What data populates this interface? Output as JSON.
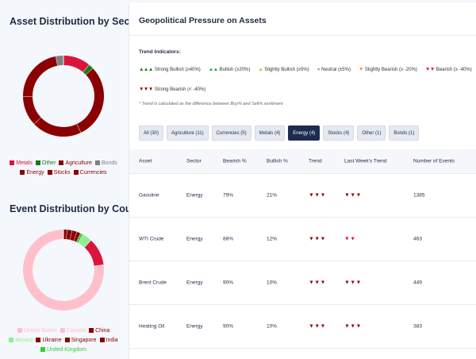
{
  "asset_distribution": {
    "title": "Asset Distribution by Sector",
    "legend": [
      {
        "label": "Metals",
        "color": "#dc143c"
      },
      {
        "label": "Other",
        "color": "#1a7a1a"
      },
      {
        "label": "Agriculture",
        "color": "#8b0000"
      },
      {
        "label": "Bonds",
        "color": "#808080"
      },
      {
        "label": "Energy",
        "color": "#8b0000"
      },
      {
        "label": "Stocks",
        "color": "#8b0000"
      },
      {
        "label": "Currencies",
        "color": "#8b0000"
      }
    ],
    "chart_data": {
      "type": "pie",
      "variant": "donut",
      "slices": [
        {
          "name": "Metals",
          "value": 11,
          "color": "#dc143c"
        },
        {
          "name": "Other",
          "value": 2,
          "color": "#1a7a1a"
        },
        {
          "name": "Agriculture",
          "value": 30,
          "color": "#8b0000"
        },
        {
          "name": "Stocks",
          "value": 20,
          "color": "#8b0000"
        },
        {
          "name": "Currencies",
          "value": 12,
          "color": "#8b0000"
        },
        {
          "name": "Energy",
          "value": 22,
          "color": "#8b0000"
        },
        {
          "name": "Bonds",
          "value": 3,
          "color": "#808080"
        }
      ]
    }
  },
  "event_distribution": {
    "title": "Event Distribution by Country",
    "legend": [
      {
        "label": "United States",
        "color": "#ffc0cb"
      },
      {
        "label": "Canada",
        "color": "#ffc0cb"
      },
      {
        "label": "China",
        "color": "#8b0000"
      },
      {
        "label": "Mexico",
        "color": "#90ee90"
      },
      {
        "label": "Ukraine",
        "color": "#8b0000"
      },
      {
        "label": "Singapore",
        "color": "#8b0000"
      },
      {
        "label": "India",
        "color": "#8b0000"
      },
      {
        "label": "United Kingdom",
        "color": "#32cd32"
      }
    ],
    "chart_data": {
      "type": "pie",
      "variant": "donut",
      "slices": [
        {
          "name": "China",
          "value": 1.5,
          "color": "#8b0000"
        },
        {
          "name": "Ukraine",
          "value": 2,
          "color": "#8b0000"
        },
        {
          "name": "Singapore",
          "value": 2,
          "color": "#8b0000"
        },
        {
          "name": "India",
          "value": 1.5,
          "color": "#8b0000"
        },
        {
          "name": "United Kingdom",
          "value": 1,
          "color": "#32cd32"
        },
        {
          "name": "Mexico",
          "value": 4,
          "color": "#90ee90"
        },
        {
          "name": "Canada",
          "value": 11,
          "color": "#dc143c"
        },
        {
          "name": "United States",
          "value": 77,
          "color": "#ffc0cb"
        }
      ]
    }
  },
  "panel": {
    "title": "Geopolitical Pressure on Assets",
    "trend_title": "Trend Indicators:",
    "indicators": [
      {
        "symbol": "▲▲▲",
        "color": "#1a7a1a",
        "label": "Strong Bullish (≥40%)"
      },
      {
        "symbol": "▲▲",
        "color": "#32a852",
        "label": "Bullish (≥20%)"
      },
      {
        "symbol": "▲",
        "color": "#9acd32",
        "label": "Slightly Bullish (≥5%)"
      },
      {
        "symbol": "●",
        "color": "#9aa3ad",
        "label": "Neutral (±5%)"
      },
      {
        "symbol": "▼",
        "color": "#f28c28",
        "label": "Slightly Bearish (≥ -20%)"
      },
      {
        "symbol": "▼▼",
        "color": "#dc143c",
        "label": "Bearish (≥ -40%)"
      },
      {
        "symbol": "▼▼▼",
        "color": "#8b0d0d",
        "label": "Strong Bearish (< -40%)"
      }
    ],
    "note": "* Trend is calculated as the difference between Buy% and Sell% sentiment",
    "filters": [
      {
        "label": "All (30)",
        "active": false
      },
      {
        "label": "Agriculture (11)",
        "active": false
      },
      {
        "label": "Currencies (5)",
        "active": false
      },
      {
        "label": "Metals (4)",
        "active": false
      },
      {
        "label": "Energy (4)",
        "active": true
      },
      {
        "label": "Stocks (4)",
        "active": false
      },
      {
        "label": "Other (1)",
        "active": false
      },
      {
        "label": "Bonds (1)",
        "active": false
      }
    ],
    "table": {
      "headers": [
        "Asset",
        "Sector",
        "Bearish %",
        "Bullish %",
        "Trend",
        "Last Week's Trend",
        "Number of Events"
      ],
      "rows": [
        {
          "asset": "Gasoline",
          "sector": "Energy",
          "bearish": "79%",
          "bullish": "21%",
          "trend": "▼▼▼",
          "last": "▼▼▼",
          "last_color": "#8b0d0d",
          "events": "1385"
        },
        {
          "asset": "WTI Crude",
          "sector": "Energy",
          "bearish": "88%",
          "bullish": "12%",
          "trend": "▼▼▼",
          "last": "▼▼",
          "last_color": "#dc143c",
          "events": "463"
        },
        {
          "asset": "Brent Crude",
          "sector": "Energy",
          "bearish": "90%",
          "bullish": "10%",
          "trend": "▼▼▼",
          "last": "▼▼▼",
          "last_color": "#8b0d0d",
          "events": "449"
        },
        {
          "asset": "Heating Oil",
          "sector": "Energy",
          "bearish": "90%",
          "bullish": "10%",
          "trend": "▼▼▼",
          "last": "▼▼▼",
          "last_color": "#8b0d0d",
          "events": "383"
        }
      ]
    }
  }
}
